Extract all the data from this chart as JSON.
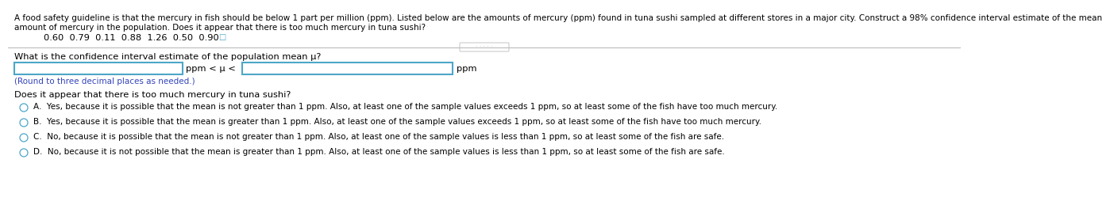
{
  "title_line1": "A food safety guideline is that the mercury in fish should be below 1 part per million (ppm). Listed below are the amounts of mercury (ppm) found in tuna sushi sampled at different stores in a major city. Construct a 98% confidence interval estimate of the mean",
  "title_line2": "amount of mercury in the population. Does it appear that there is too much mercury in tuna sushi?",
  "data_values": "0.60  0.79  0.11  0.88  1.26  0.50  0.90",
  "question1": "What is the confidence interval estimate of the population mean μ?",
  "input_label": "ppm < μ <",
  "input_suffix": "ppm",
  "round_note": "(Round to three decimal places as needed.)",
  "question2": "Does it appear that there is too much mercury in tuna sushi?",
  "options": [
    "A.  Yes, because it is possible that the mean is not greater than 1 ppm. Also, at least one of the sample values exceeds 1 ppm, so at least some of the fish have too much mercury.",
    "B.  Yes, because it is possible that the mean is greater than 1 ppm. Also, at least one of the sample values exceeds 1 ppm, so at least some of the fish have too much mercury.",
    "C.  No, because it is possible that the mean is not greater than 1 ppm. Also, at least one of the sample values is less than 1 ppm, so at least some of the fish are safe.",
    "D.  No, because it is not possible that the mean is greater than 1 ppm. Also, at least one of the sample values is less than 1 ppm, so at least some of the fish are safe."
  ],
  "bg_color": "#ffffff",
  "text_color": "#000000",
  "box_color": "#4da6c8",
  "option_circle_color": "#4da6c8",
  "note_color": "#3344bb",
  "separator_color": "#bbbbbb",
  "dots_color": "#aaaaaa",
  "font_size_title": 7.5,
  "font_size_body": 8.2,
  "font_size_small": 7.5
}
